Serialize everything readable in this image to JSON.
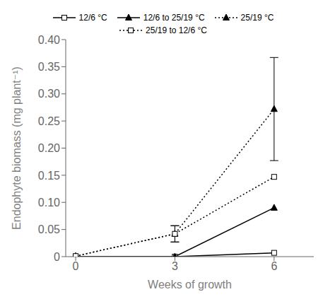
{
  "chart_data": {
    "type": "line",
    "xlabel": "Weeks of growth",
    "ylabel": "Endophyte biomass (mg plant⁻¹)",
    "x": [
      0,
      3,
      6
    ],
    "xlim": [
      -0.3,
      7.2
    ],
    "xticks": [
      0,
      3,
      6
    ],
    "ylim": [
      0,
      0.4
    ],
    "yticks": [
      0,
      0.05,
      {
        "value": 0.1,
        "label": "0.10"
      },
      0.15,
      {
        "value": 0.2,
        "label": "0.20"
      },
      0.25,
      {
        "value": 0.3,
        "label": "0.30"
      },
      0.35,
      {
        "value": 0.4,
        "label": "0.40"
      }
    ],
    "grid": false,
    "legend": "top",
    "series": [
      {
        "name": "12/6 °C",
        "values": [
          0.0,
          0.0,
          0.007
        ],
        "yerr": [
          null,
          null,
          null
        ],
        "color": "black",
        "marker": "square",
        "line_style": "solid"
      },
      {
        "name": "12/6 to 25/19 °C",
        "values": [
          0.0,
          0.0,
          0.09
        ],
        "yerr": [
          null,
          null,
          null
        ],
        "color": "black",
        "marker": "triangle",
        "line_style": "solid"
      },
      {
        "name": "25/19 °C",
        "values": [
          0.001,
          0.042,
          0.272
        ],
        "yerr": [
          null,
          0.015,
          0.095
        ],
        "color": "black",
        "marker": "triangle",
        "line_style": "dotted"
      },
      {
        "name": "25/19 to 12/6 °C",
        "values": [
          0.001,
          0.042,
          0.147
        ],
        "yerr": [
          null,
          0.015,
          null
        ],
        "color": "black",
        "marker": "square",
        "line_style": "dotted"
      }
    ]
  }
}
